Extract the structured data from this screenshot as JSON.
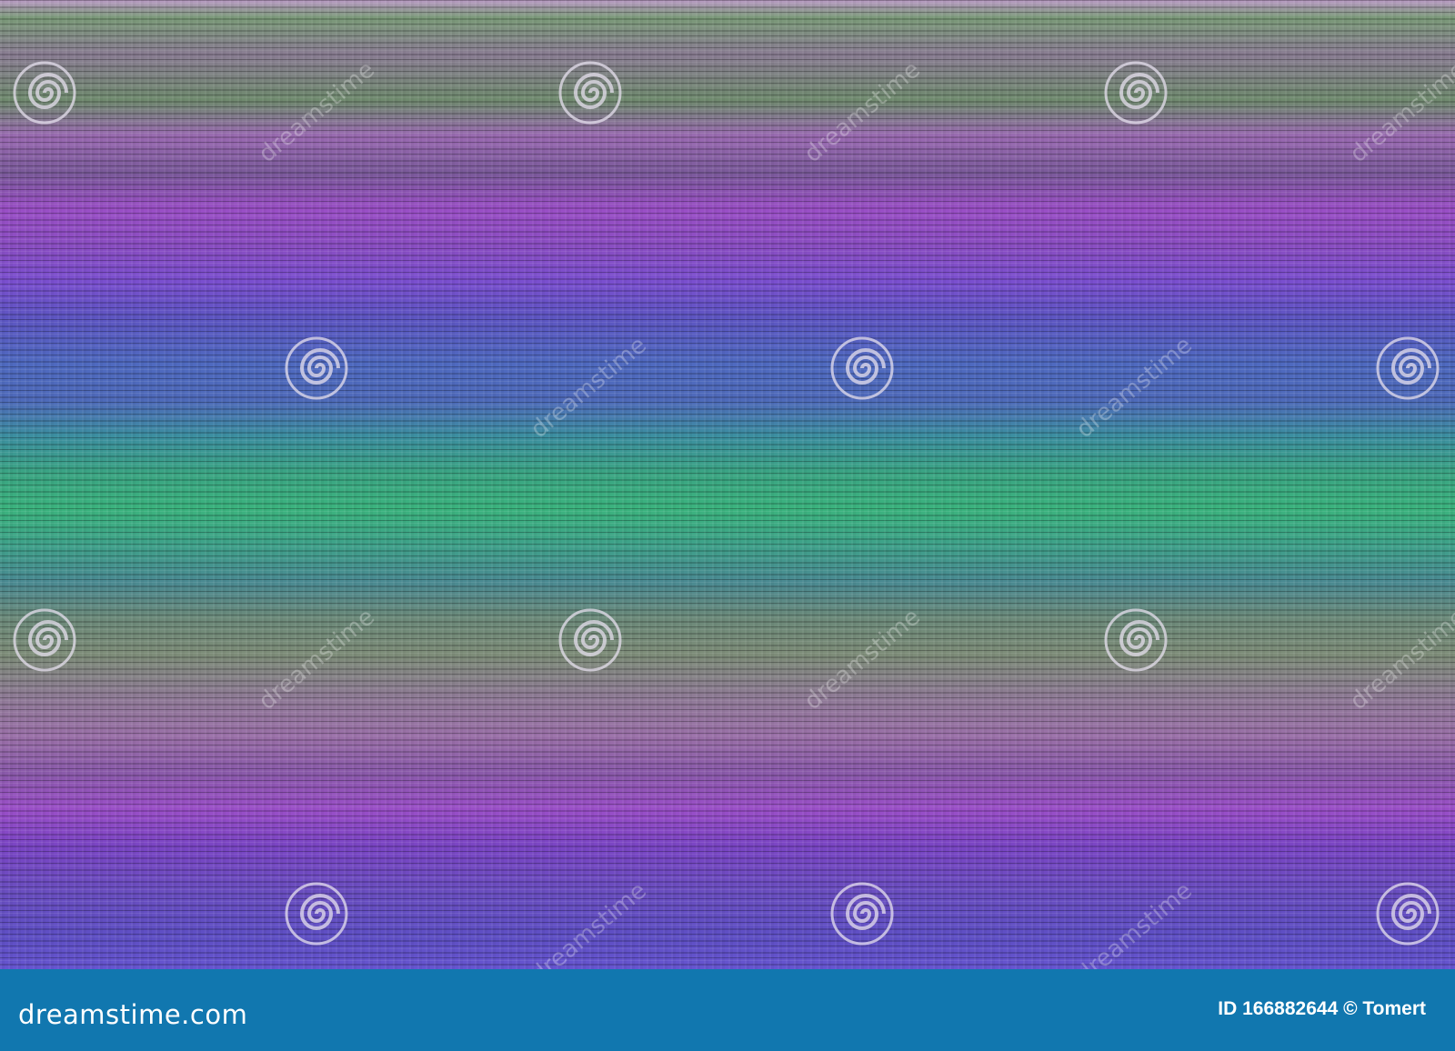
{
  "image": {
    "description_colors": {
      "purple": "#9a4fc6",
      "green": "#3bb37e",
      "blue": "#4f6ac0",
      "footer": "#1177af"
    },
    "watermark_text": "dreamstime",
    "watermark_icon": "spiral-icon"
  },
  "footer": {
    "logo": "dreamstime.com",
    "credit": "ID 166882644 © Tomert"
  }
}
